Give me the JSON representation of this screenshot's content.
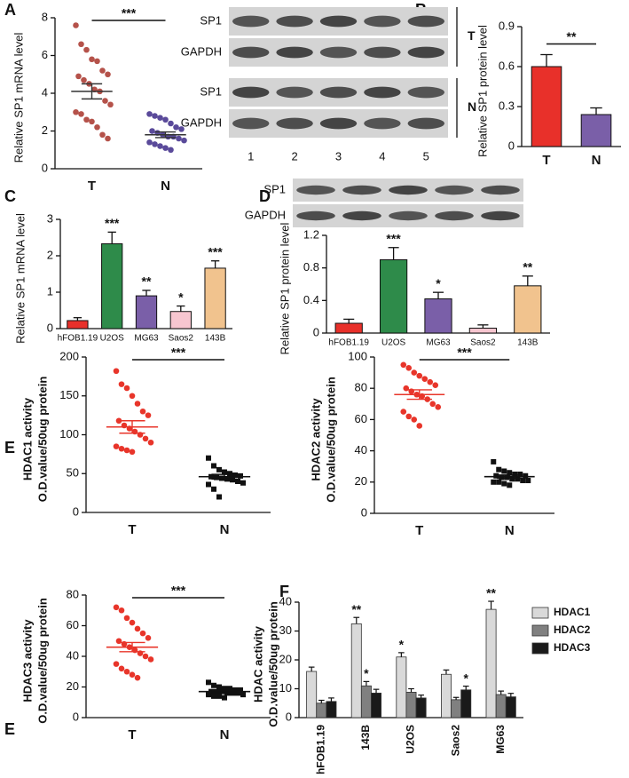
{
  "chart_data": [
    {
      "type": "dotplot",
      "panel": "A",
      "y_label": [
        "Relative SP1 mRNA level"
      ],
      "ylim": [
        0,
        8
      ],
      "yticks": [
        0,
        2,
        4,
        6,
        8
      ],
      "significance": "***",
      "groups": [
        {
          "name": "T",
          "color": "#b5524a",
          "marker": "circle",
          "mean_color": "#333333",
          "mean": 4.1,
          "sem": 0.4,
          "values": [
            7.6,
            6.6,
            6.3,
            5.8,
            5.7,
            5.2,
            5.0,
            4.9,
            4.7,
            4.5,
            4.2,
            4.1,
            3.6,
            3.4,
            3.0,
            2.9,
            2.6,
            2.5,
            2.2,
            1.8,
            1.6
          ]
        },
        {
          "name": "N",
          "color": "#5a4a9a",
          "marker": "circle",
          "mean_color": "#333333",
          "mean": 1.8,
          "sem": 0.15,
          "values": [
            2.9,
            2.8,
            2.7,
            2.6,
            2.4,
            2.2,
            2.1,
            2.0,
            1.9,
            1.8,
            1.7,
            1.7,
            1.6,
            1.5,
            1.4,
            1.3,
            1.2,
            1.1,
            1.0
          ]
        }
      ]
    },
    {
      "type": "bar",
      "panel": "B",
      "y_label": [
        "Relative SP1 protein level"
      ],
      "ylim": [
        0,
        0.9
      ],
      "yticks": [
        0,
        0.3,
        0.6,
        0.9
      ],
      "significance": "**",
      "categories": [
        "T",
        "N"
      ],
      "values": [
        0.6,
        0.24
      ],
      "errors": [
        0.09,
        0.05
      ],
      "colors": [
        "#e8302a",
        "#7a5fa8"
      ],
      "blot": {
        "rows": [
          "SP1",
          "GAPDH",
          "SP1",
          "GAPDH"
        ],
        "groups": [
          "T",
          "N"
        ],
        "lanes": [
          "1",
          "2",
          "3",
          "4",
          "5"
        ]
      }
    },
    {
      "type": "bar",
      "panel": "C",
      "y_label": [
        "Relative SP1 mRNA level"
      ],
      "ylim": [
        0,
        3
      ],
      "yticks": [
        0,
        1,
        2,
        3
      ],
      "categories": [
        "hFOB1.19",
        "U2OS",
        "MG63",
        "Saos2",
        "143B"
      ],
      "values": [
        0.22,
        2.33,
        0.9,
        0.47,
        1.66
      ],
      "errors": [
        0.08,
        0.32,
        0.15,
        0.15,
        0.2
      ],
      "colors": [
        "#e8302a",
        "#2e8b4a",
        "#7a5fa8",
        "#f7c6d0",
        "#f1c38e"
      ],
      "significance": [
        null,
        "***",
        "**",
        "*",
        "***"
      ]
    },
    {
      "type": "bar",
      "panel": "D",
      "y_label": [
        "Relative SP1 protein level"
      ],
      "ylim": [
        0,
        1.2
      ],
      "yticks": [
        0,
        0.4,
        0.8,
        1.2
      ],
      "categories": [
        "hFOB1.19",
        "U2OS",
        "MG63",
        "Saos2",
        "143B"
      ],
      "values": [
        0.12,
        0.9,
        0.42,
        0.06,
        0.58
      ],
      "errors": [
        0.05,
        0.15,
        0.08,
        0.04,
        0.12
      ],
      "colors": [
        "#e8302a",
        "#2e8b4a",
        "#7a5fa8",
        "#f7c6d0",
        "#f1c38e"
      ],
      "significance": [
        null,
        "***",
        "*",
        null,
        "**"
      ],
      "blot": {
        "rows": [
          "SP1",
          "GAPDH"
        ]
      }
    },
    {
      "type": "dotplot",
      "panel": "E",
      "y_label": [
        "HDAC1 activity",
        "O.D.value/50ug protein"
      ],
      "ylim": [
        0,
        200
      ],
      "yticks": [
        0,
        50,
        100,
        150,
        200
      ],
      "significance": "***",
      "groups": [
        {
          "name": "T",
          "color": "#e8352a",
          "marker": "circle",
          "mean_color": "#e8352a",
          "mean": 110,
          "sem": 8,
          "values": [
            182,
            165,
            160,
            150,
            140,
            130,
            125,
            118,
            112,
            108,
            104,
            100,
            95,
            90,
            85,
            82,
            80,
            78
          ]
        },
        {
          "name": "N",
          "color": "#111111",
          "marker": "square",
          "mean_color": "#111111",
          "mean": 46,
          "sem": 3,
          "values": [
            70,
            60,
            55,
            52,
            50,
            48,
            47,
            46,
            45,
            44,
            43,
            42,
            40,
            38,
            36,
            30,
            20
          ]
        }
      ]
    },
    {
      "type": "dotplot",
      "y_label": [
        "HDAC2 activity",
        "O.D.value/50ug protein"
      ],
      "ylim": [
        0,
        100
      ],
      "yticks": [
        0,
        20,
        40,
        60,
        80,
        100
      ],
      "significance": "***",
      "groups": [
        {
          "name": "T",
          "color": "#e8352a",
          "marker": "circle",
          "mean_color": "#e8352a",
          "mean": 76,
          "sem": 3,
          "values": [
            95,
            93,
            90,
            88,
            86,
            84,
            82,
            80,
            78,
            76,
            75,
            73,
            70,
            68,
            65,
            62,
            60,
            56
          ]
        },
        {
          "name": "N",
          "color": "#111111",
          "marker": "square",
          "mean_color": "#111111",
          "mean": 23.5,
          "sem": 1,
          "values": [
            33,
            28,
            27,
            26,
            25,
            25,
            24,
            24,
            23,
            23,
            22,
            22,
            21,
            21,
            20,
            20,
            19,
            18
          ]
        }
      ]
    },
    {
      "type": "dotplot",
      "panel": "E",
      "y_label": [
        "HDAC3 activity",
        "O.D.value/50ug protein"
      ],
      "ylim": [
        0,
        80
      ],
      "yticks": [
        0,
        20,
        40,
        60,
        80
      ],
      "significance": "***",
      "groups": [
        {
          "name": "T",
          "color": "#e8352a",
          "marker": "circle",
          "mean_color": "#e8352a",
          "mean": 46,
          "sem": 3,
          "values": [
            72,
            70,
            65,
            62,
            58,
            55,
            52,
            50,
            48,
            46,
            44,
            42,
            40,
            38,
            35,
            32,
            30,
            28,
            26
          ]
        },
        {
          "name": "N",
          "color": "#111111",
          "marker": "square",
          "mean_color": "#111111",
          "mean": 17,
          "sem": 0.7,
          "values": [
            23,
            21,
            20,
            19,
            19,
            18,
            18,
            17,
            17,
            17,
            16,
            16,
            16,
            15,
            15,
            14,
            14,
            13
          ]
        }
      ]
    },
    {
      "type": "grouped_bar",
      "panel": "F",
      "y_label": [
        "HDAC activity",
        "O.D.value/50ug protein"
      ],
      "ylim": [
        0,
        40
      ],
      "yticks": [
        0,
        10,
        20,
        30,
        40
      ],
      "categories": [
        "hFOB1.19",
        "143B",
        "U2OS",
        "Saos2",
        "MG63"
      ],
      "series": [
        {
          "name": "HDAC1",
          "color": "#d9d9d9",
          "values": [
            16,
            32.5,
            21,
            15,
            37.5
          ],
          "errors": [
            1.5,
            2.2,
            1.5,
            1.5,
            2.8
          ],
          "significance": [
            null,
            "**",
            "*",
            null,
            "**"
          ]
        },
        {
          "name": "HDAC2",
          "color": "#808080",
          "values": [
            5,
            11,
            8.8,
            6.2,
            8
          ],
          "errors": [
            1,
            1.5,
            1.2,
            0.8,
            1.2
          ],
          "significance": [
            null,
            "*",
            null,
            null,
            null
          ]
        },
        {
          "name": "HDAC3",
          "color": "#1a1a1a",
          "values": [
            5.6,
            8.5,
            6.8,
            9.6,
            7.2
          ],
          "errors": [
            1.2,
            1.3,
            1,
            1.3,
            1.2
          ],
          "significance": [
            null,
            null,
            null,
            "*",
            null
          ]
        }
      ]
    }
  ]
}
